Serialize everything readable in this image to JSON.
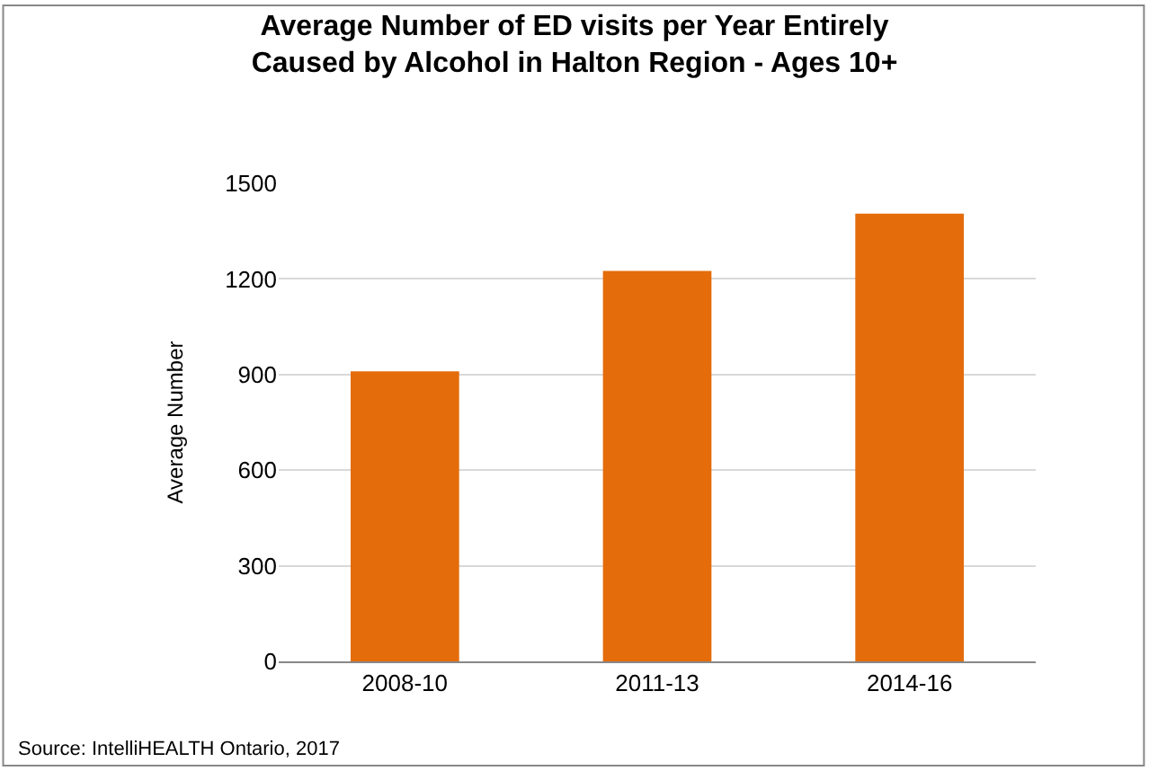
{
  "chart_data": {
    "type": "bar",
    "title": "Average Number of ED visits per Year Entirely\nCaused by Alcohol in Halton Region - Ages 10+",
    "ylabel": "Average Number",
    "categories": [
      "2008-10",
      "2011-13",
      "2014-16"
    ],
    "values": [
      910,
      1225,
      1405
    ],
    "color": "#e46c0a",
    "ylim": [
      0,
      1500
    ],
    "yticks": [
      0,
      300,
      600,
      900,
      1200,
      1500
    ],
    "grid": "y",
    "annotations": [
      "Source: IntelliHEALTH Ontario, 2017"
    ]
  }
}
